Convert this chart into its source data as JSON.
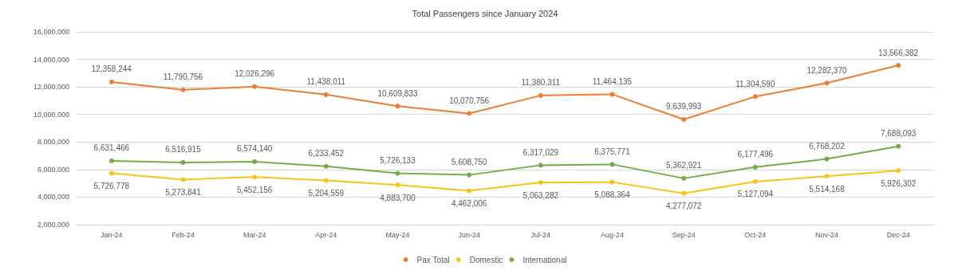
{
  "chart_data": {
    "type": "line",
    "title": "Total Passengers since January 2024",
    "categories": [
      "Jan-24",
      "Feb-24",
      "Mar-24",
      "Apr-24",
      "May-24",
      "Jun-24",
      "Jul-24",
      "Aug-24",
      "Sep-24",
      "Oct-24",
      "Nov-24",
      "Dec-24"
    ],
    "series": [
      {
        "name": "Pax Total",
        "color": "#ed7d31",
        "values": [
          12358244,
          11790756,
          12026296,
          11438011,
          10609833,
          10070756,
          11380311,
          11464135,
          9639993,
          11304590,
          12282370,
          13566382
        ],
        "value_labels": [
          "12,358,244",
          "11,790,756",
          "12,026,296",
          "11,438,011",
          "10,609,833",
          "10,070,756",
          "11,380,311",
          "11,464,135",
          "9,639,993",
          "11,304,590",
          "12,282,370",
          "13,566,382"
        ]
      },
      {
        "name": "Domestic",
        "color": "#f5c518",
        "values": [
          5726778,
          5273841,
          5452156,
          5204559,
          4883700,
          4462006,
          5063282,
          5088364,
          4277072,
          5127094,
          5514168,
          5926302
        ],
        "value_labels": [
          "5,726,778",
          "5,273,841",
          "5,452,156",
          "5,204,559",
          "4,883,700",
          "4,462,006",
          "5,063,282",
          "5,088,364",
          "4,277,072",
          "5,127,094",
          "5,514,168",
          "5,926,302"
        ]
      },
      {
        "name": "International",
        "color": "#70ad47",
        "values": [
          6631466,
          6516915,
          6574140,
          6233452,
          5726133,
          5608750,
          6317029,
          6375771,
          5362921,
          6177496,
          6768202,
          7688093
        ],
        "value_labels": [
          "6,631,466",
          "6,516,915",
          "6,574,140",
          "6,233,452",
          "5,726,133",
          "5,608,750",
          "6,317,029",
          "6,375,771",
          "5,362,921",
          "6,177,496",
          "6,768,202",
          "7,688,093"
        ]
      }
    ],
    "ylim": [
      2000000,
      16000000
    ],
    "yticks": [
      {
        "value": 2000000,
        "label": "2,000,000"
      },
      {
        "value": 4000000,
        "label": "4,000,000"
      },
      {
        "value": 6000000,
        "label": "6,000,000"
      },
      {
        "value": 8000000,
        "label": "8,000,000"
      },
      {
        "value": 10000000,
        "label": "10,000,000"
      },
      {
        "value": 12000000,
        "label": "12,000,000"
      },
      {
        "value": 14000000,
        "label": "14,000,000"
      },
      {
        "value": 16000000,
        "label": "16,000,000"
      }
    ],
    "grid": "y",
    "legend": "bottom",
    "marker": "circle",
    "line_style": "solid"
  }
}
